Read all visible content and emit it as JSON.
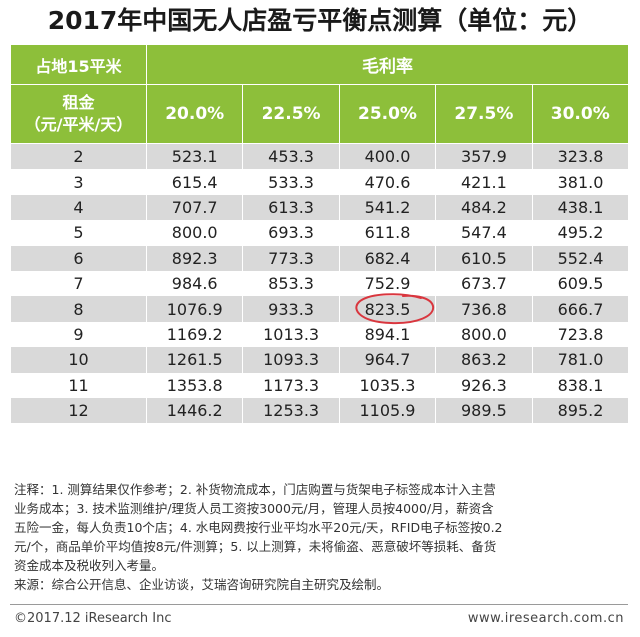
{
  "title": "2017年中国无人店盈亏平衡点测算（单位：元）",
  "table": {
    "area_label": "占地15平米",
    "margin_label": "毛利率",
    "rent_label_line1": "租金",
    "rent_label_line2": "（元/平米/天）",
    "margins": [
      "20.0%",
      "22.5%",
      "25.0%",
      "27.5%",
      "30.0%"
    ],
    "rows": [
      {
        "rent": "2",
        "values": [
          "523.1",
          "453.3",
          "400.0",
          "357.9",
          "323.8"
        ]
      },
      {
        "rent": "3",
        "values": [
          "615.4",
          "533.3",
          "470.6",
          "421.1",
          "381.0"
        ]
      },
      {
        "rent": "4",
        "values": [
          "707.7",
          "613.3",
          "541.2",
          "484.2",
          "438.1"
        ]
      },
      {
        "rent": "5",
        "values": [
          "800.0",
          "693.3",
          "611.8",
          "547.4",
          "495.2"
        ]
      },
      {
        "rent": "6",
        "values": [
          "892.3",
          "773.3",
          "682.4",
          "610.5",
          "552.4"
        ]
      },
      {
        "rent": "7",
        "values": [
          "984.6",
          "853.3",
          "752.9",
          "673.7",
          "609.5"
        ]
      },
      {
        "rent": "8",
        "values": [
          "1076.9",
          "933.3",
          "823.5",
          "736.8",
          "666.7"
        ]
      },
      {
        "rent": "9",
        "values": [
          "1169.2",
          "1013.3",
          "894.1",
          "800.0",
          "723.8"
        ]
      },
      {
        "rent": "10",
        "values": [
          "1261.5",
          "1093.3",
          "964.7",
          "863.2",
          "781.0"
        ]
      },
      {
        "rent": "11",
        "values": [
          "1353.8",
          "1173.3",
          "1035.3",
          "926.3",
          "838.1"
        ]
      },
      {
        "rent": "12",
        "values": [
          "1446.2",
          "1253.3",
          "1105.9",
          "989.5",
          "895.2"
        ]
      }
    ],
    "highlighted": {
      "row": 6,
      "col": 2
    }
  },
  "notes": {
    "line1": "注释：1. 测算结果仅作参考；2. 补货物流成本，门店购置与货架电子标签成本计入主营",
    "line2": "业务成本；3. 技术监测维护/理货人员工资按3000元/月，管理人员按4000/月，薪资含",
    "line3": "五险一金，每人负责10个店；4. 水电网费按行业平均水平20元/天，RFID电子标签按0.2",
    "line4": "元/个，商品单价平均值按8元/件测算；5. 以上测算，未将偷盗、恶意破坏等损耗、备货",
    "line5": "资金成本及税收列入考量。",
    "source": "来源：综合公开信息、企业访谈，艾瑞咨询研究院自主研究及绘制。"
  },
  "footer": {
    "copyright": "©2017.12 iResearch Inc",
    "website": "www.iresearch.com.cn"
  },
  "colors": {
    "header_green": "#8dbf3a",
    "row_gray": "#d9d9d9",
    "highlight_circle": "#d9363e"
  }
}
